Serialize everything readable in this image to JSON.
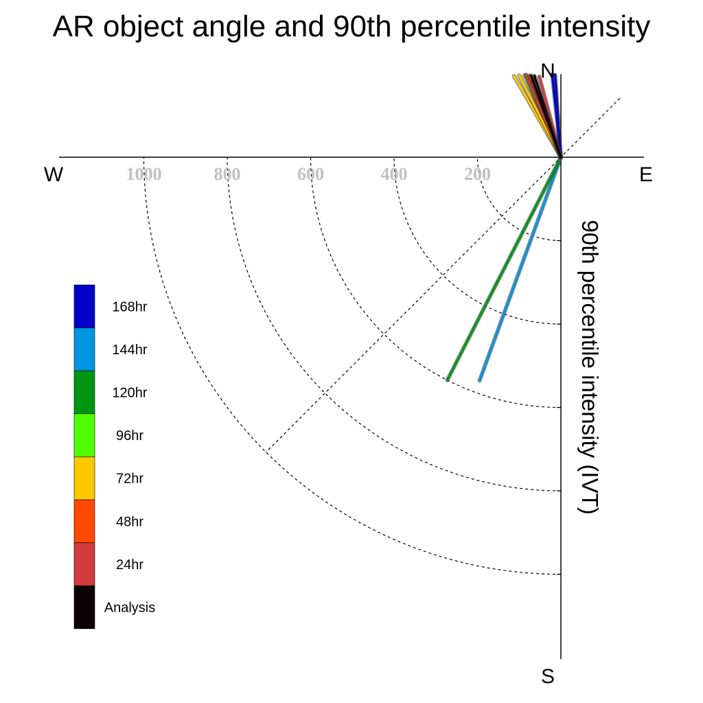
{
  "title": "AR object angle and 90th percentile intensity",
  "chart_data": {
    "type": "polar-vector",
    "title": "AR object angle and 90th percentile intensity",
    "radial_axis_label": "90th percentile intensity (IVT)",
    "directions": {
      "north": "N",
      "south": "S",
      "east": "E",
      "west": "W"
    },
    "radial_ticks": [
      "200",
      "400",
      "600",
      "800",
      "1000"
    ],
    "radial_tick_values": [
      200,
      400,
      600,
      800,
      1000
    ],
    "legend": [
      "168hr",
      "144hr",
      "120hr",
      "96hr",
      "72hr",
      "48hr",
      "24hr",
      "Analysis"
    ],
    "legend_colors": [
      "#0000c8",
      "#0096e1",
      "#009614",
      "#50ff00",
      "#ffc800",
      "#ff4800",
      "#d23c3c",
      "#0a0005"
    ],
    "series": [
      {
        "name": "Analysis",
        "color": "#0a0005",
        "vectors": [
          {
            "angle_deg": 342,
            "intensity": 205
          },
          {
            "angle_deg": 340,
            "intensity": 208
          }
        ]
      },
      {
        "name": "24hr",
        "color": "#d23c3c",
        "vectors": [
          {
            "angle_deg": 345,
            "intensity": 200
          },
          {
            "angle_deg": 337,
            "intensity": 215
          }
        ]
      },
      {
        "name": "48hr",
        "color": "#ff4800",
        "vectors": [
          {
            "angle_deg": 339,
            "intensity": 210
          }
        ]
      },
      {
        "name": "72hr",
        "color": "#ffc800",
        "vectors": [
          {
            "angle_deg": 330,
            "intensity": 225
          },
          {
            "angle_deg": 333,
            "intensity": 220
          }
        ]
      },
      {
        "name": "96hr",
        "color": "#50ff00",
        "vectors": [
          {
            "angle_deg": 336,
            "intensity": 215
          },
          {
            "angle_deg": 337,
            "intensity": 212
          }
        ]
      },
      {
        "name": "120hr",
        "color": "#009614",
        "vectors": [
          {
            "angle_deg": 207,
            "intensity": 600
          }
        ]
      },
      {
        "name": "144hr",
        "color": "#0096e1",
        "vectors": [
          {
            "angle_deg": 200,
            "intensity": 570
          }
        ]
      },
      {
        "name": "168hr",
        "color": "#0000c8",
        "vectors": [
          {
            "angle_deg": 356,
            "intensity": 198
          },
          {
            "angle_deg": 354,
            "intensity": 200
          }
        ]
      }
    ]
  }
}
